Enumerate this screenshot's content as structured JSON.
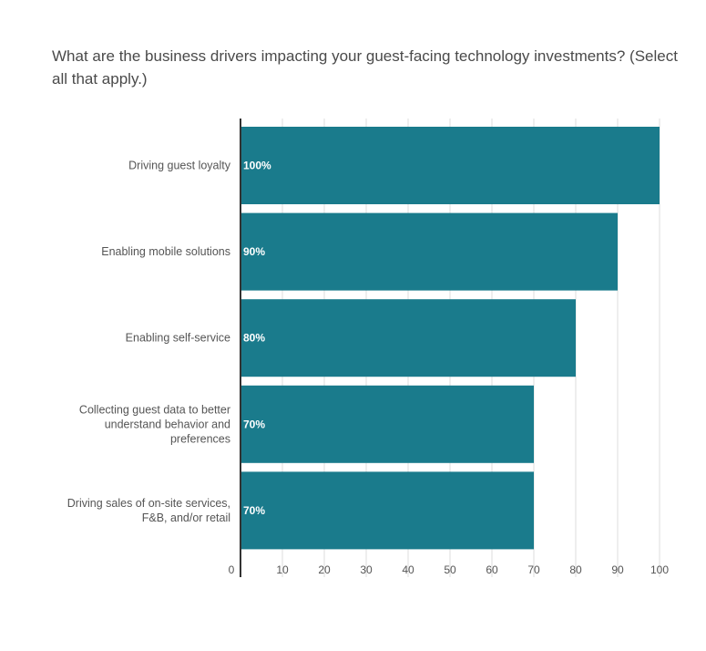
{
  "chart_data": {
    "type": "bar",
    "orientation": "horizontal",
    "title": "What are the business drivers impacting your guest-facing technology investments? (Select all that apply.)",
    "categories": [
      [
        "Driving guest loyalty"
      ],
      [
        "Enabling mobile solutions"
      ],
      [
        "Enabling self-service"
      ],
      [
        "Collecting guest data to better",
        "understand behavior and",
        "preferences"
      ],
      [
        "Driving sales of on-site services,",
        "F&B, and/or retail"
      ]
    ],
    "values": [
      100,
      90,
      80,
      70,
      70
    ],
    "data_labels": [
      "100%",
      "90%",
      "80%",
      "70%",
      "70%"
    ],
    "xlim": [
      0,
      100
    ],
    "xticks": [
      0,
      10,
      20,
      30,
      40,
      50,
      60,
      70,
      80,
      90,
      100
    ],
    "grid": true,
    "legend": "none",
    "bar_color": "#1a7b8c",
    "grid_color": "#dddddd",
    "axis_color": "#333333"
  }
}
